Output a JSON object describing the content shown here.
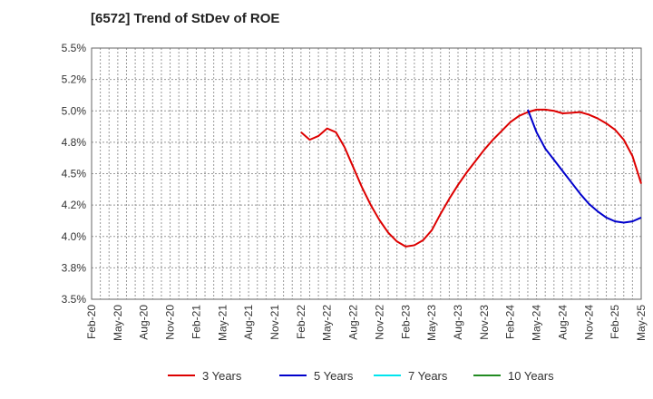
{
  "chart_data": {
    "type": "line",
    "title": "[6572]  Trend of StDev of ROE",
    "xlabel": "",
    "ylabel": "",
    "x_ticks": [
      "Feb-20",
      "May-20",
      "Aug-20",
      "Nov-20",
      "Feb-21",
      "May-21",
      "Aug-21",
      "Nov-21",
      "Feb-22",
      "May-22",
      "Aug-22",
      "Nov-22",
      "Feb-23",
      "May-23",
      "Aug-23",
      "Nov-23",
      "Feb-24",
      "May-24",
      "Aug-24",
      "Nov-24",
      "Feb-25",
      "May-25"
    ],
    "y_ticks": [
      "3.5%",
      "3.8%",
      "4.0%",
      "4.2%",
      "4.5%",
      "4.8%",
      "5.0%",
      "5.2%",
      "5.5%"
    ],
    "ylim": [
      3.5,
      5.5
    ],
    "x_range": [
      "2020-02",
      "2025-05"
    ],
    "grid": true,
    "legend_position": "bottom",
    "series": [
      {
        "name": "3 Years",
        "color": "#dd0000",
        "points": [
          [
            "2022-02",
            4.83
          ],
          [
            "2022-03",
            4.77
          ],
          [
            "2022-04",
            4.8
          ],
          [
            "2022-05",
            4.86
          ],
          [
            "2022-06",
            4.83
          ],
          [
            "2022-07",
            4.71
          ],
          [
            "2022-08",
            4.55
          ],
          [
            "2022-09",
            4.39
          ],
          [
            "2022-10",
            4.25
          ],
          [
            "2022-11",
            4.13
          ],
          [
            "2022-12",
            4.03
          ],
          [
            "2023-01",
            3.96
          ],
          [
            "2023-02",
            3.92
          ],
          [
            "2023-03",
            3.93
          ],
          [
            "2023-04",
            3.97
          ],
          [
            "2023-05",
            4.05
          ],
          [
            "2023-06",
            4.18
          ],
          [
            "2023-07",
            4.3
          ],
          [
            "2023-08",
            4.41
          ],
          [
            "2023-09",
            4.51
          ],
          [
            "2023-10",
            4.6
          ],
          [
            "2023-11",
            4.69
          ],
          [
            "2023-12",
            4.77
          ],
          [
            "2024-01",
            4.84
          ],
          [
            "2024-02",
            4.91
          ],
          [
            "2024-03",
            4.96
          ],
          [
            "2024-04",
            4.99
          ],
          [
            "2024-05",
            5.01
          ],
          [
            "2024-06",
            5.01
          ],
          [
            "2024-07",
            5.0
          ],
          [
            "2024-08",
            4.98
          ],
          [
            "2024-09",
            4.985
          ],
          [
            "2024-10",
            4.99
          ],
          [
            "2024-11",
            4.97
          ],
          [
            "2024-12",
            4.94
          ],
          [
            "2025-01",
            4.9
          ],
          [
            "2025-02",
            4.85
          ],
          [
            "2025-03",
            4.77
          ],
          [
            "2025-04",
            4.64
          ],
          [
            "2025-05",
            4.42
          ]
        ]
      },
      {
        "name": "5 Years",
        "color": "#0000cc",
        "points": [
          [
            "2024-04",
            5.01
          ],
          [
            "2024-05",
            4.83
          ],
          [
            "2024-06",
            4.7
          ],
          [
            "2024-07",
            4.61
          ],
          [
            "2024-08",
            4.52
          ],
          [
            "2024-09",
            4.43
          ],
          [
            "2024-10",
            4.34
          ],
          [
            "2024-11",
            4.26
          ],
          [
            "2024-12",
            4.2
          ],
          [
            "2025-01",
            4.15
          ],
          [
            "2025-02",
            4.12
          ],
          [
            "2025-03",
            4.11
          ],
          [
            "2025-04",
            4.12
          ],
          [
            "2025-05",
            4.15
          ]
        ]
      },
      {
        "name": "7 Years",
        "color": "#00e5ee",
        "points": []
      },
      {
        "name": "10 Years",
        "color": "#228B22",
        "points": []
      }
    ]
  }
}
